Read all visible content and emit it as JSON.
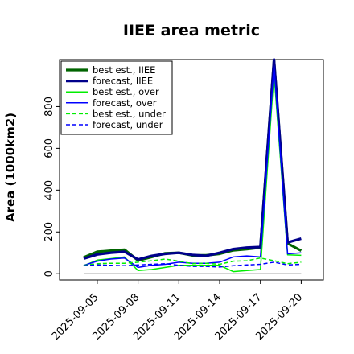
{
  "chart_data": {
    "type": "line",
    "title": "IIEE area metric",
    "xlabel": "",
    "ylabel": "Area (1000km2)",
    "x": [
      "2025-09-04",
      "2025-09-05",
      "2025-09-06",
      "2025-09-07",
      "2025-09-08",
      "2025-09-09",
      "2025-09-10",
      "2025-09-11",
      "2025-09-12",
      "2025-09-13",
      "2025-09-14",
      "2025-09-15",
      "2025-09-16",
      "2025-09-17",
      "2025-09-18",
      "2025-09-19",
      "2025-09-20"
    ],
    "x_ticks": [
      "2025-09-05",
      "2025-09-08",
      "2025-09-11",
      "2025-09-14",
      "2025-09-17",
      "2025-09-20"
    ],
    "highlight_tick": "2025-09-11",
    "highlight_color": "#228b22",
    "yticks": [
      0,
      200,
      400,
      600,
      800
    ],
    "ylim": [
      -30,
      1025
    ],
    "grid": false,
    "legend_position": "top-left",
    "baseline": 0,
    "series": [
      {
        "name": "best est., IIEE",
        "color": "#006400",
        "width": 3.2,
        "dash": "",
        "values": [
          78,
          105,
          110,
          115,
          63,
          80,
          98,
          100,
          88,
          88,
          95,
          112,
          118,
          125,
          1020,
          145,
          110
        ]
      },
      {
        "name": "forecast, IIEE",
        "color": "#00008b",
        "width": 3.2,
        "dash": "",
        "values": [
          72,
          92,
          100,
          105,
          68,
          85,
          95,
          100,
          90,
          85,
          100,
          118,
          125,
          128,
          1025,
          150,
          168
        ]
      },
      {
        "name": "best est., over",
        "color": "#00ee00",
        "width": 1.5,
        "dash": "",
        "values": [
          38,
          65,
          72,
          80,
          15,
          20,
          30,
          40,
          40,
          40,
          40,
          10,
          15,
          20,
          960,
          90,
          88
        ]
      },
      {
        "name": "forecast, over",
        "color": "#0000ff",
        "width": 1.5,
        "dash": "",
        "values": [
          40,
          60,
          70,
          75,
          30,
          40,
          45,
          55,
          50,
          50,
          55,
          80,
          85,
          80,
          995,
          95,
          100
        ]
      },
      {
        "name": "best est., under",
        "color": "#00ee00",
        "width": 1.5,
        "dash": "5,3",
        "values": [
          40,
          48,
          50,
          50,
          55,
          62,
          70,
          60,
          48,
          50,
          45,
          60,
          62,
          75,
          62,
          48,
          55
        ]
      },
      {
        "name": "forecast, under",
        "color": "#0000ff",
        "width": 1.5,
        "dash": "5,3",
        "values": [
          38,
          42,
          40,
          38,
          42,
          45,
          48,
          40,
          35,
          35,
          32,
          38,
          42,
          45,
          55,
          42,
          45
        ]
      }
    ]
  }
}
